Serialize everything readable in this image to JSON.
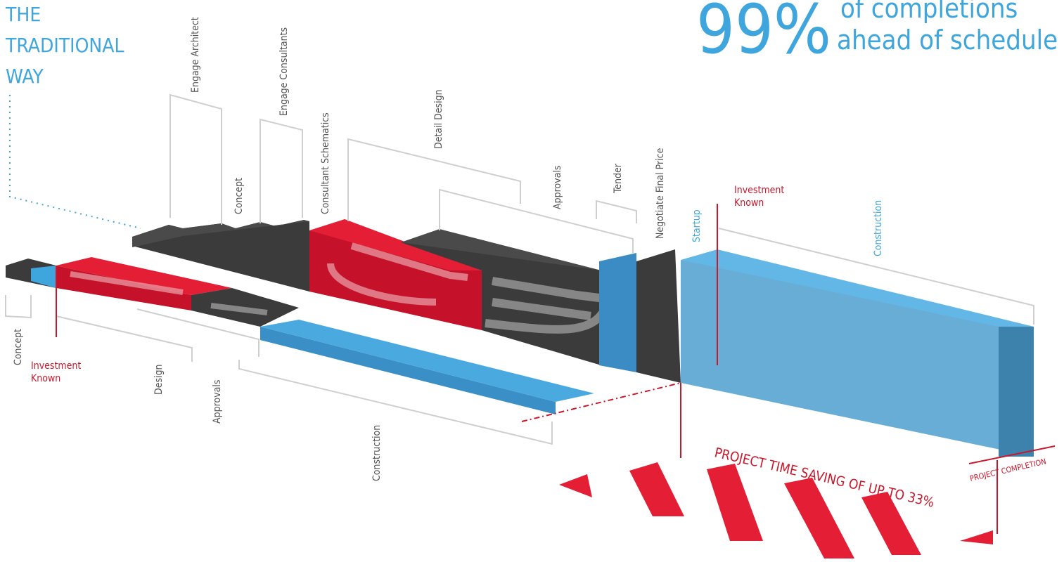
{
  "header": {
    "left_title_line1": "THE",
    "left_title_line2": "TRADITIONAL",
    "left_title_line3": "WAY",
    "stat_value": "99%",
    "stat_line1": "of completions",
    "stat_line2": "ahead of schedule"
  },
  "top_track_labels": {
    "engage_architect": "Engage Architect",
    "engage_consultants": "Engage Consultants",
    "concept": "Concept",
    "consultant_schematics": "Consultant Schematics",
    "detail_design": "Detail Design",
    "approvals": "Approvals",
    "tender": "Tender",
    "negotiate_final_price": "Negotiate Final Price",
    "startup": "Startup",
    "investment_known_line1": "Investment",
    "investment_known_line2": "Known",
    "construction": "Construction"
  },
  "bottom_track_labels": {
    "concept": "Concept",
    "investment_known_line1": "Investment",
    "investment_known_line2": "Known",
    "design": "Design",
    "approvals": "Approvals",
    "construction": "Construction"
  },
  "footer": {
    "time_saving": "PROJECT TIME SAVING OF UP TO 33%",
    "project_completion": "PROJECT COMPLETION"
  },
  "colors": {
    "blue": "#3fa6dd",
    "blue_dark": "#2f7fae",
    "dark": "#3a3a3a",
    "red": "#e41e35",
    "red_dark": "#c5122a",
    "bracket": "#cfcfcf"
  }
}
